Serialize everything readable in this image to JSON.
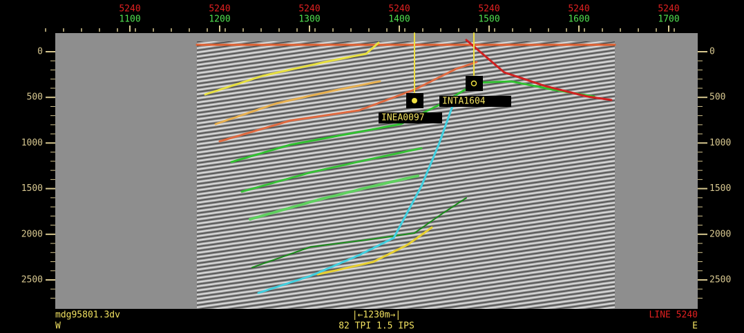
{
  "top_axis": {
    "trace_labels": [
      "5240",
      "5240",
      "5240",
      "5240",
      "5240",
      "5240",
      "5240"
    ],
    "cdp_labels": [
      "1100",
      "1200",
      "1300",
      "1400",
      "1500",
      "1600",
      "1700"
    ]
  },
  "depth_labels": [
    "0",
    "500",
    "1000",
    "1500",
    "2000",
    "2500"
  ],
  "wells": [
    {
      "label": "INEA0097"
    },
    {
      "label": "INTA1604"
    }
  ],
  "footer": {
    "file": "mdg95801.3dv",
    "west": "W",
    "scale": "|←1230m→|",
    "resolution": "82 TPI   1.5 IPS",
    "line": "LINE 5240",
    "east": "E"
  }
}
